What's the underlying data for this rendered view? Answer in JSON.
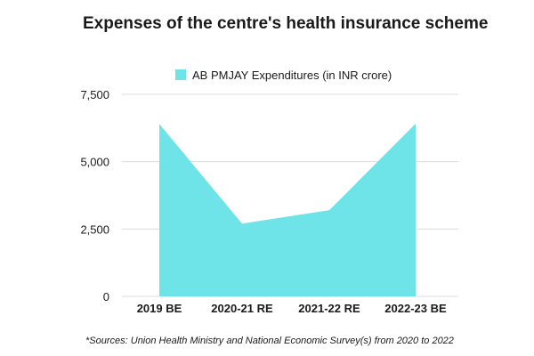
{
  "chart_data": {
    "type": "area",
    "title": "Expenses of the centre's health insurance scheme",
    "categories": [
      "2019 BE",
      "2020-21 RE",
      "2021-22 RE",
      "2022-23 BE"
    ],
    "series": [
      {
        "name": "AB PMJAY Expenditures (in INR crore)",
        "values": [
          6400,
          2700,
          3200,
          6412
        ]
      }
    ],
    "y_ticks": [
      "0",
      "2,500",
      "5,000",
      "7,500"
    ],
    "ylim": [
      0,
      7500
    ],
    "grid": true,
    "legend_position": "top-center",
    "source_note": "*Sources: Union Health Ministry and National Economic Survey(s) from 2020 to 2022",
    "colors": {
      "area": "#6ee3e8",
      "grid": "#dcdcdc"
    }
  }
}
